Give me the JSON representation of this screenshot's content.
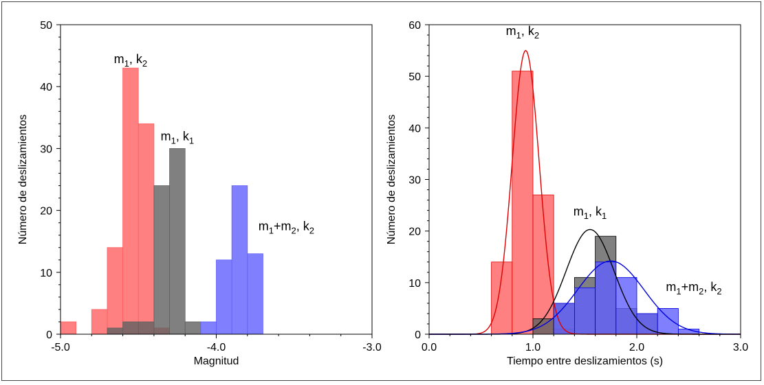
{
  "chart_data": [
    {
      "type": "bar",
      "xlabel": "Magnitud",
      "ylabel": "Número de deslizamientos",
      "xlim": [
        -5.0,
        -3.0
      ],
      "ylim": [
        0,
        50
      ],
      "xticks": [
        "-5.0",
        "-4.0",
        "-3.0"
      ],
      "yticks": [
        "0",
        "10",
        "20",
        "30",
        "40",
        "50"
      ],
      "bin_width": 0.1,
      "series": [
        {
          "name": "m1, k2",
          "color": "#ff6060",
          "bins": [
            {
              "x0": -5.0,
              "count": 2
            },
            {
              "x0": -4.8,
              "count": 4
            },
            {
              "x0": -4.7,
              "count": 14
            },
            {
              "x0": -4.6,
              "count": 43
            },
            {
              "x0": -4.5,
              "count": 34
            },
            {
              "x0": -4.4,
              "count": 1
            }
          ]
        },
        {
          "name": "m1, k1",
          "color": "#606060",
          "bins": [
            {
              "x0": -4.7,
              "count": 1
            },
            {
              "x0": -4.6,
              "count": 2
            },
            {
              "x0": -4.5,
              "count": 2
            },
            {
              "x0": -4.4,
              "count": 24
            },
            {
              "x0": -4.3,
              "count": 30
            },
            {
              "x0": -4.2,
              "count": 2
            }
          ]
        },
        {
          "name": "m1+m2, k2",
          "color": "#6060ff",
          "bins": [
            {
              "x0": -4.1,
              "count": 2
            },
            {
              "x0": -4.0,
              "count": 12
            },
            {
              "x0": -3.9,
              "count": 24
            },
            {
              "x0": -3.8,
              "count": 13
            }
          ]
        }
      ],
      "labels": [
        {
          "base": "m",
          "sub1": "1",
          "mid": ", k",
          "sub2": "2",
          "x": -4.55,
          "y": 43.8
        },
        {
          "base": "m",
          "sub1": "1",
          "mid": ", k",
          "sub2": "1",
          "x": -4.25,
          "y": 31.3
        },
        {
          "base": "m",
          "sub1": "1",
          "mid": "+m",
          "sub2": "2",
          "tail": ", k",
          "sub3": "2",
          "x": -3.55,
          "y": 16.8
        }
      ]
    },
    {
      "type": "bar",
      "xlabel": "Tiempo entre deslizamientos (s)",
      "ylabel": "Número de deslizamientos",
      "xlim": [
        0.0,
        3.0
      ],
      "ylim": [
        0,
        60
      ],
      "xticks": [
        "0.0",
        "1.0",
        "2.0",
        "3.0"
      ],
      "yticks": [
        "0",
        "10",
        "20",
        "30",
        "40",
        "50",
        "60"
      ],
      "bin_width": 0.2,
      "series": [
        {
          "name": "m1, k2",
          "color": "#ff6060",
          "line_color": "#dd0000",
          "bins": [
            {
              "x0": 0.6,
              "count": 14
            },
            {
              "x0": 0.8,
              "count": 51
            },
            {
              "x0": 1.0,
              "count": 27
            },
            {
              "x0": 1.2,
              "count": 1
            }
          ],
          "fit": {
            "mean": 0.93,
            "sd": 0.13,
            "peak": 55
          }
        },
        {
          "name": "m1, k1",
          "color": "#606060",
          "line_color": "#000000",
          "bins": [
            {
              "x0": 1.0,
              "count": 3
            },
            {
              "x0": 1.2,
              "count": 6
            },
            {
              "x0": 1.4,
              "count": 11
            },
            {
              "x0": 1.6,
              "count": 19
            },
            {
              "x0": 1.8,
              "count": 5
            },
            {
              "x0": 2.0,
              "count": 4
            }
          ],
          "fit": {
            "mean": 1.55,
            "sd": 0.23,
            "peak": 20.3
          }
        },
        {
          "name": "m1+m2, k2",
          "color": "#6060ff",
          "line_color": "#0000dd",
          "bins": [
            {
              "x0": 1.2,
              "count": 6
            },
            {
              "x0": 1.4,
              "count": 9
            },
            {
              "x0": 1.6,
              "count": 14
            },
            {
              "x0": 1.8,
              "count": 11
            },
            {
              "x0": 2.0,
              "count": 4
            },
            {
              "x0": 2.2,
              "count": 5
            },
            {
              "x0": 2.4,
              "count": 1
            }
          ],
          "fit": {
            "mean": 1.75,
            "sd": 0.32,
            "peak": 14.2
          }
        }
      ],
      "labels": [
        {
          "base": "m",
          "sub1": "1",
          "mid": ", k",
          "sub2": "2",
          "x": 0.9,
          "y": 58.0
        },
        {
          "base": "m",
          "sub1": "1",
          "mid": ", k",
          "sub2": "1",
          "x": 1.55,
          "y": 23.0
        },
        {
          "base": "m",
          "sub1": "1",
          "mid": "+m",
          "sub2": "2",
          "tail": ", k",
          "sub3": "2",
          "x": 2.55,
          "y": 8.4
        }
      ]
    }
  ]
}
